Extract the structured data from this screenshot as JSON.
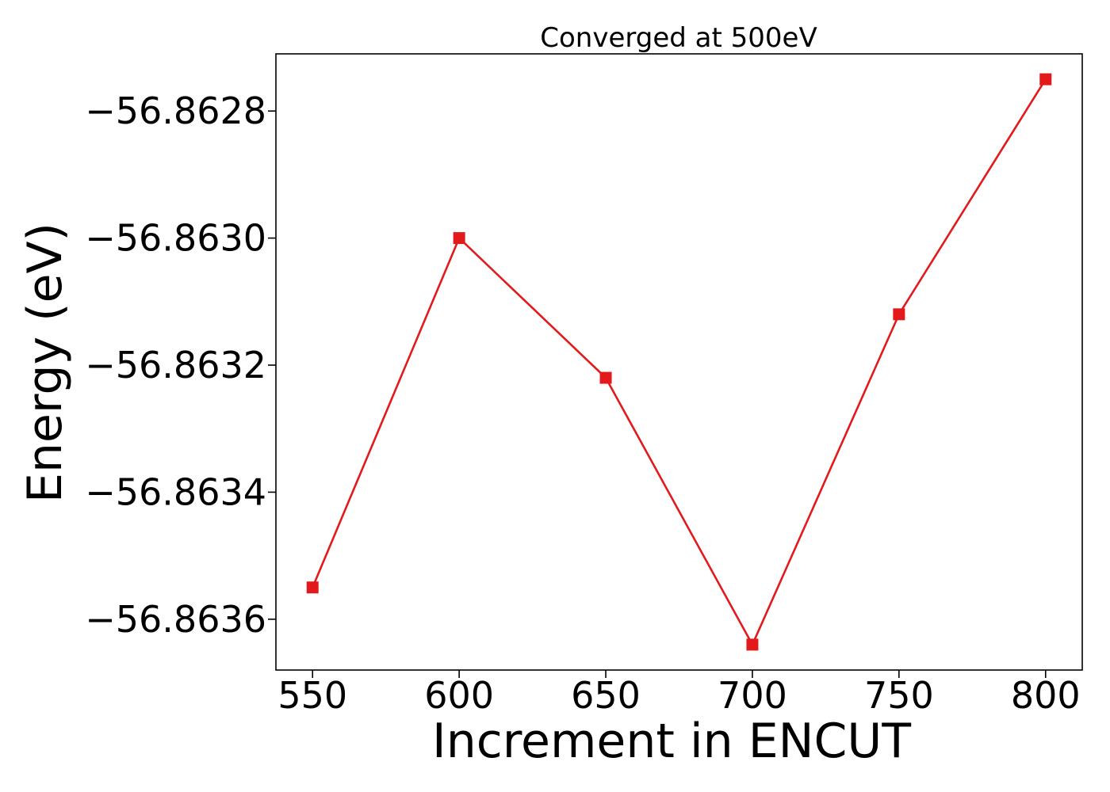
{
  "chart_data": {
    "type": "line",
    "title": "Converged at 500eV",
    "xlabel": "Increment in ENCUT",
    "ylabel": "Energy (eV)",
    "x": [
      550,
      600,
      650,
      700,
      750,
      800
    ],
    "series": [
      {
        "values": [
          -56.86355,
          -56.863,
          -56.86322,
          -56.86364,
          -56.86312,
          -56.86275
        ],
        "color": "#e31a1c",
        "marker": "square"
      }
    ],
    "xticks": [
      550,
      600,
      650,
      700,
      750,
      800
    ],
    "xtick_labels": [
      "550",
      "600",
      "650",
      "700",
      "750",
      "800"
    ],
    "yticks": [
      -56.8628,
      -56.863,
      -56.8632,
      -56.8634,
      -56.8636
    ],
    "ytick_labels": [
      "−56.8628",
      "−56.8630",
      "−56.8632",
      "−56.8634",
      "−56.8636"
    ],
    "xlim": [
      537.5,
      812.5
    ],
    "ylim": [
      -56.86368,
      -56.86271
    ],
    "grid": false,
    "legend": "none"
  }
}
